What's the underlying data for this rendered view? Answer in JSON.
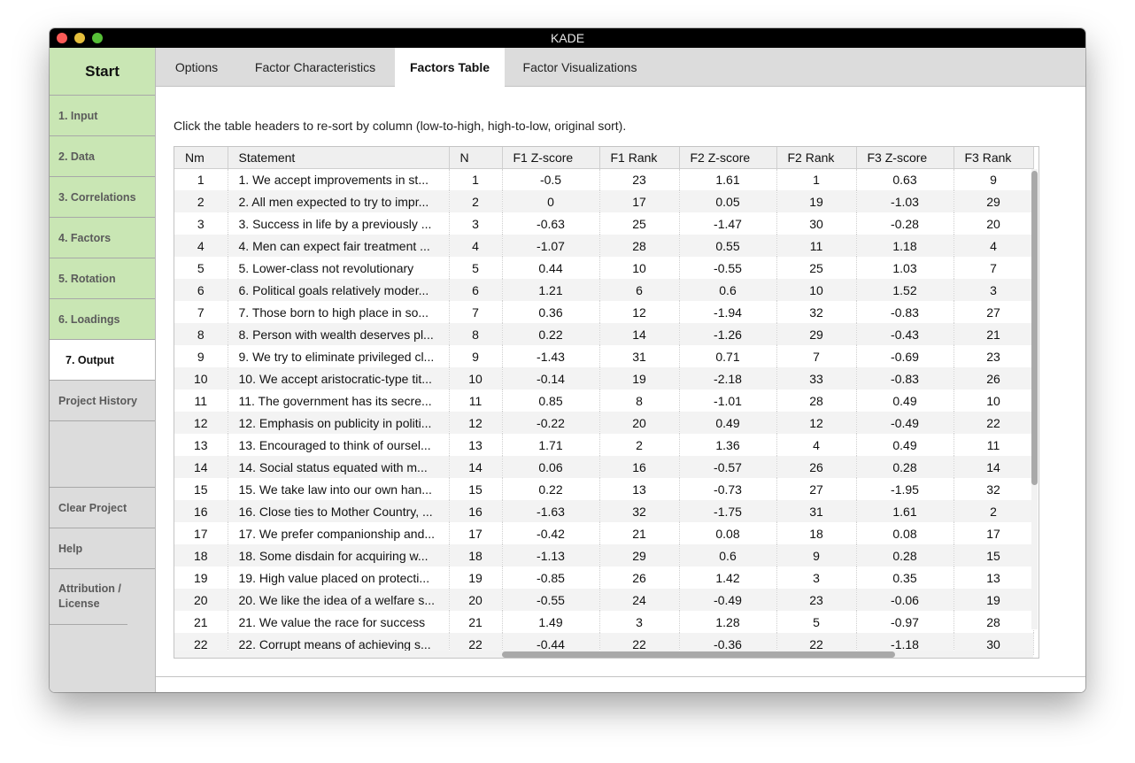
{
  "window": {
    "title": "KADE"
  },
  "sidebar": {
    "start": "Start",
    "steps": [
      "1. Input",
      "2. Data",
      "3. Correlations",
      "4. Factors",
      "5. Rotation",
      "6. Loadings",
      "7. Output"
    ],
    "project_history": "Project History",
    "clear_project": "Clear Project",
    "help": "Help",
    "attribution": "Attribution / License"
  },
  "tabs": [
    "Options",
    "Factor Characteristics",
    "Factors Table",
    "Factor Visualizations"
  ],
  "instructions": "Click the table headers to re-sort by column (low-to-high, high-to-low, original sort).",
  "table": {
    "headers": [
      "Nm",
      "Statement",
      "N",
      "F1 Z-score",
      "F1 Rank",
      "F2 Z-score",
      "F2 Rank",
      "F3 Z-score",
      "F3 Rank"
    ],
    "rows": [
      [
        "1",
        "1. We accept improvements in st...",
        "1",
        "-0.5",
        "23",
        "1.61",
        "1",
        "0.63",
        "9"
      ],
      [
        "2",
        "2. All men expected to try to impr...",
        "2",
        "0",
        "17",
        "0.05",
        "19",
        "-1.03",
        "29"
      ],
      [
        "3",
        "3. Success in life by a previously ...",
        "3",
        "-0.63",
        "25",
        "-1.47",
        "30",
        "-0.28",
        "20"
      ],
      [
        "4",
        "4. Men can expect fair treatment ...",
        "4",
        "-1.07",
        "28",
        "0.55",
        "11",
        "1.18",
        "4"
      ],
      [
        "5",
        "5. Lower-class not revolutionary",
        "5",
        "0.44",
        "10",
        "-0.55",
        "25",
        "1.03",
        "7"
      ],
      [
        "6",
        "6. Political goals relatively moder...",
        "6",
        "1.21",
        "6",
        "0.6",
        "10",
        "1.52",
        "3"
      ],
      [
        "7",
        "7. Those born to high place in so...",
        "7",
        "0.36",
        "12",
        "-1.94",
        "32",
        "-0.83",
        "27"
      ],
      [
        "8",
        "8. Person with wealth deserves pl...",
        "8",
        "0.22",
        "14",
        "-1.26",
        "29",
        "-0.43",
        "21"
      ],
      [
        "9",
        "9. We try to eliminate privileged cl...",
        "9",
        "-1.43",
        "31",
        "0.71",
        "7",
        "-0.69",
        "23"
      ],
      [
        "10",
        "10. We accept aristocratic-type tit...",
        "10",
        "-0.14",
        "19",
        "-2.18",
        "33",
        "-0.83",
        "26"
      ],
      [
        "11",
        "11. The government has its secre...",
        "11",
        "0.85",
        "8",
        "-1.01",
        "28",
        "0.49",
        "10"
      ],
      [
        "12",
        "12. Emphasis on publicity in politi...",
        "12",
        "-0.22",
        "20",
        "0.49",
        "12",
        "-0.49",
        "22"
      ],
      [
        "13",
        "13. Encouraged to think of oursel...",
        "13",
        "1.71",
        "2",
        "1.36",
        "4",
        "0.49",
        "11"
      ],
      [
        "14",
        "14. Social status equated with m...",
        "14",
        "0.06",
        "16",
        "-0.57",
        "26",
        "0.28",
        "14"
      ],
      [
        "15",
        "15. We take law into our own han...",
        "15",
        "0.22",
        "13",
        "-0.73",
        "27",
        "-1.95",
        "32"
      ],
      [
        "16",
        "16. Close ties to Mother Country, ...",
        "16",
        "-1.63",
        "32",
        "-1.75",
        "31",
        "1.61",
        "2"
      ],
      [
        "17",
        "17. We prefer companionship and...",
        "17",
        "-0.42",
        "21",
        "0.08",
        "18",
        "0.08",
        "17"
      ],
      [
        "18",
        "18. Some disdain for acquiring w...",
        "18",
        "-1.13",
        "29",
        "0.6",
        "9",
        "0.28",
        "15"
      ],
      [
        "19",
        "19. High value placed on protecti...",
        "19",
        "-0.85",
        "26",
        "1.42",
        "3",
        "0.35",
        "13"
      ],
      [
        "20",
        "20. We like the idea of a welfare s...",
        "20",
        "-0.55",
        "24",
        "-0.49",
        "23",
        "-0.06",
        "19"
      ],
      [
        "21",
        "21. We value the race for success",
        "21",
        "1.49",
        "3",
        "1.28",
        "5",
        "-0.97",
        "28"
      ],
      [
        "22",
        "22. Corrupt means of achieving s...",
        "22",
        "-0.44",
        "22",
        "-0.36",
        "22",
        "-1.18",
        "30"
      ]
    ]
  }
}
